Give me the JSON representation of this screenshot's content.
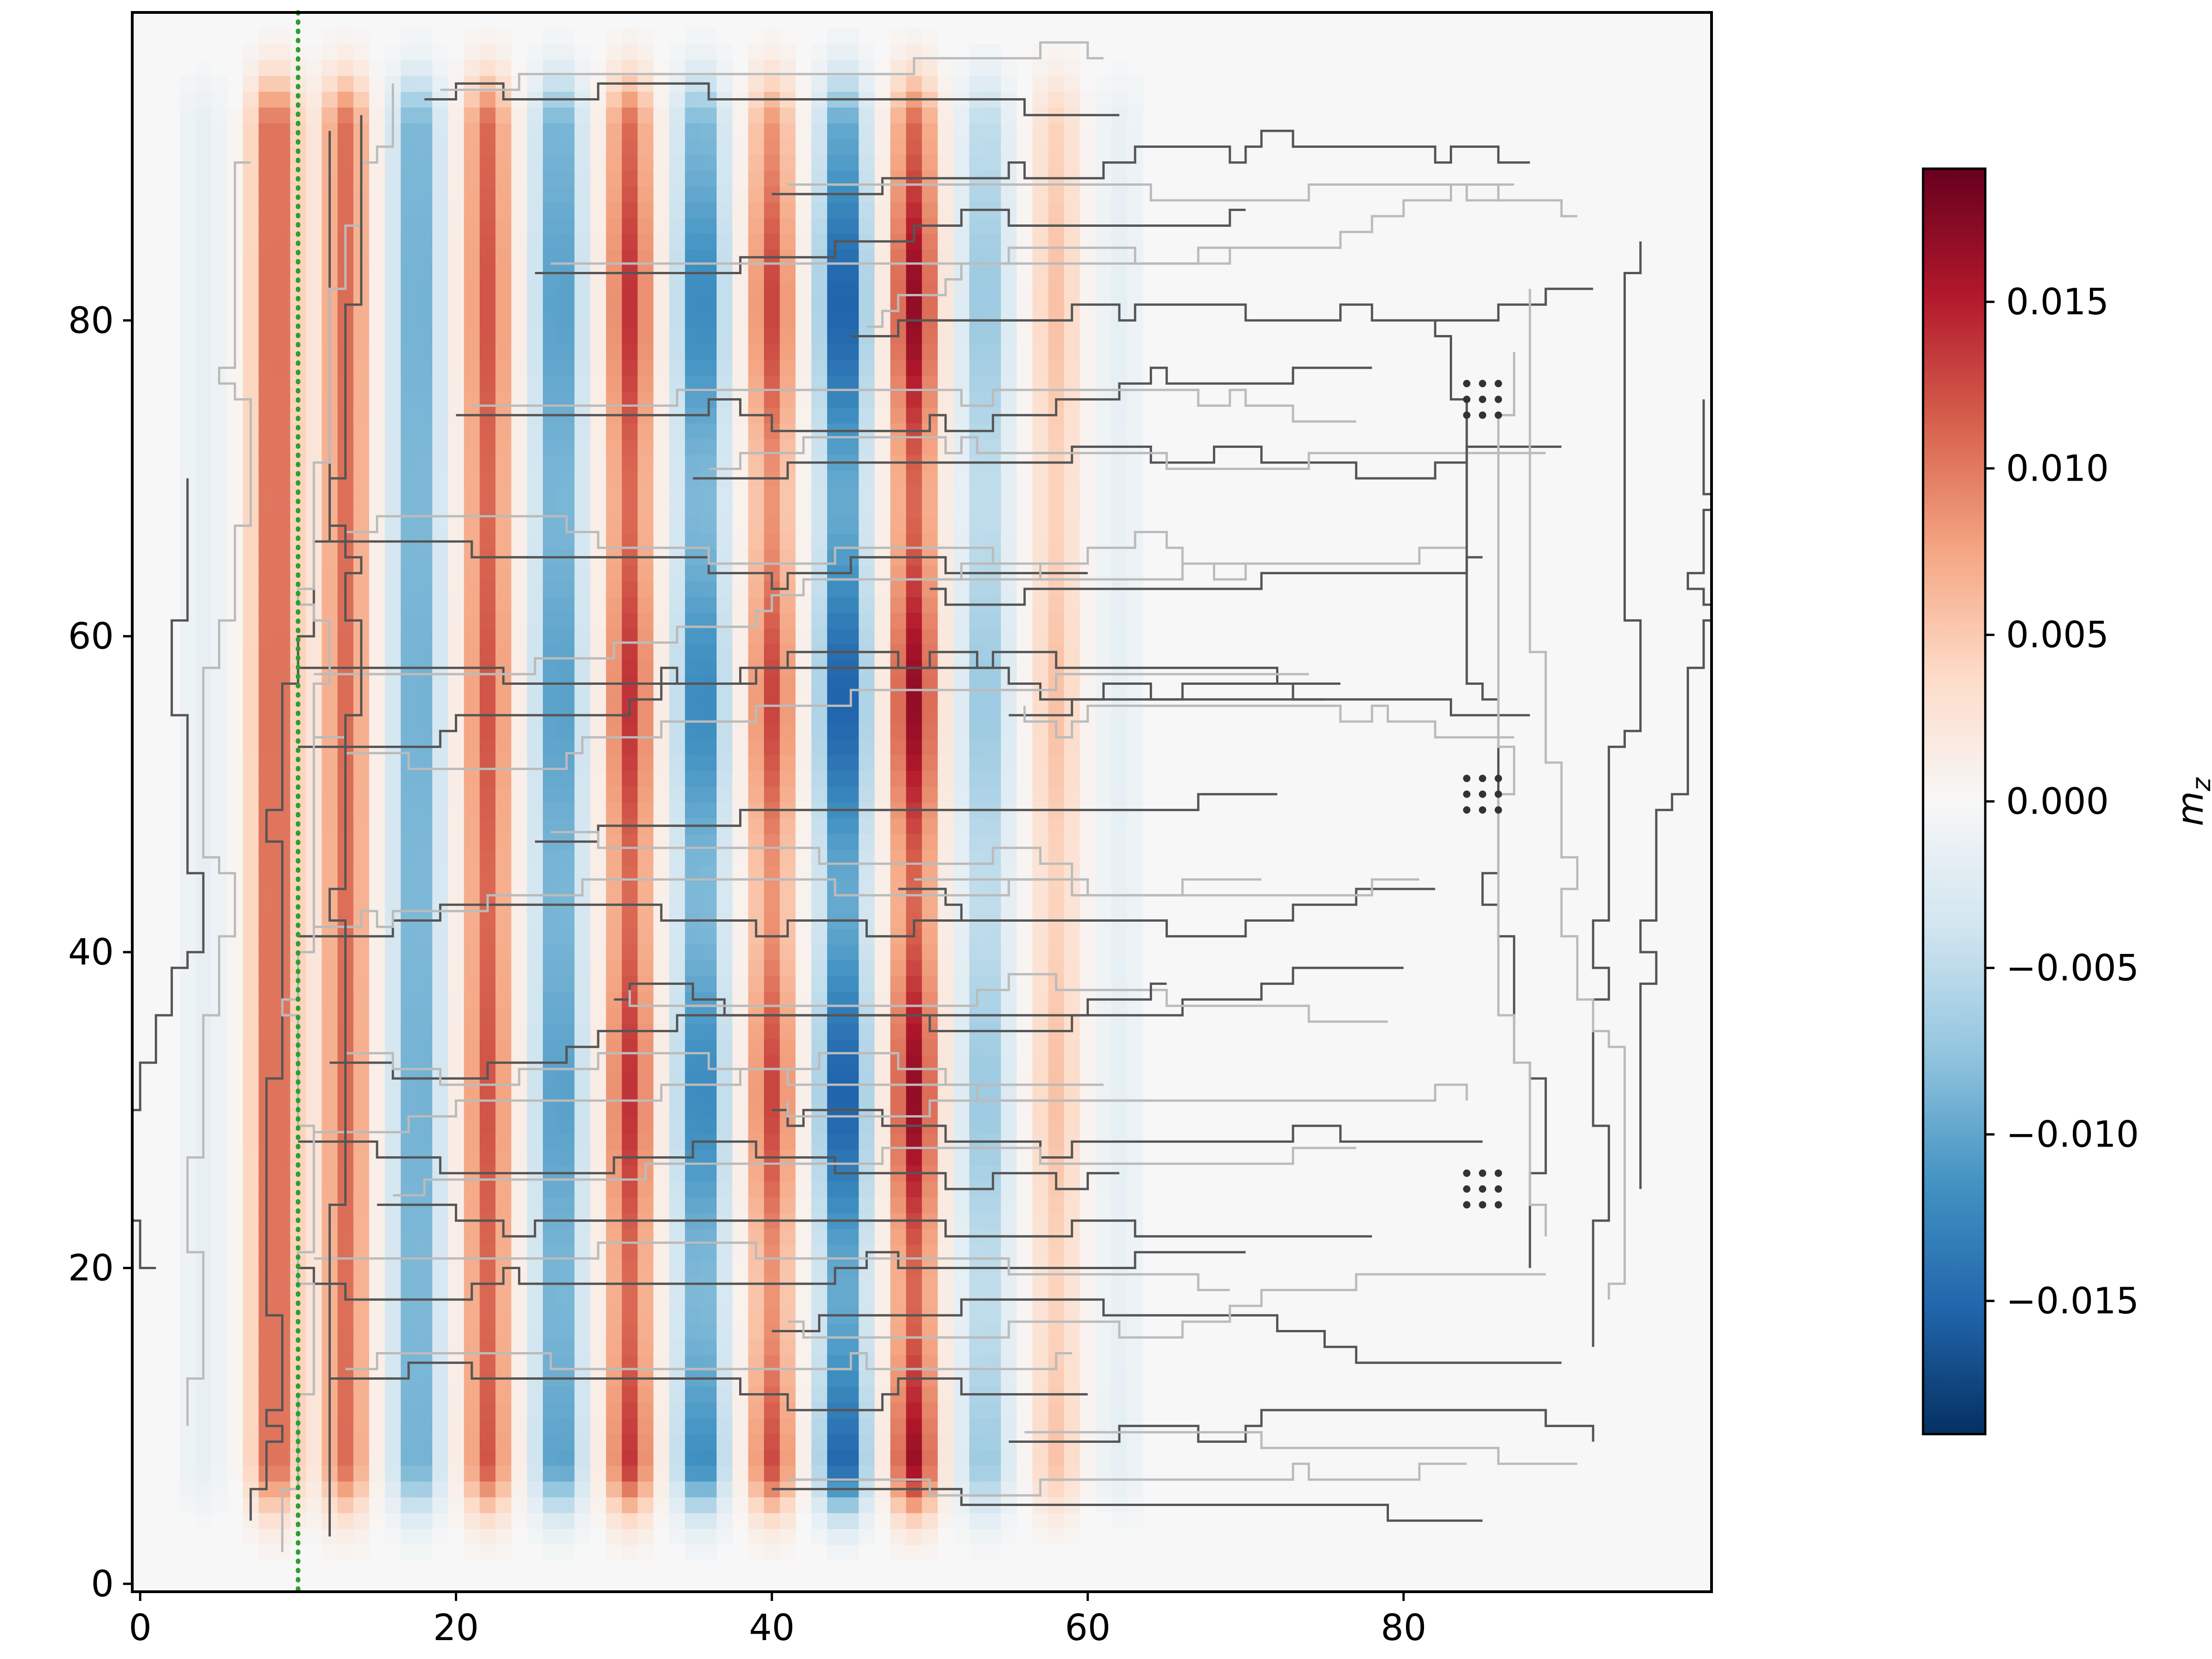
{
  "chart_data": {
    "type": "heatmap",
    "title": "",
    "xlabel": "",
    "ylabel": "",
    "xlim": [
      -0.5,
      99.5
    ],
    "ylim": [
      -0.5,
      99.5
    ],
    "x_ticks": [
      {
        "value": 0,
        "label": "0"
      },
      {
        "value": 20,
        "label": "20"
      },
      {
        "value": 40,
        "label": "40"
      },
      {
        "value": 60,
        "label": "60"
      },
      {
        "value": 80,
        "label": "80"
      }
    ],
    "y_ticks": [
      {
        "value": 0,
        "label": "0"
      },
      {
        "value": 20,
        "label": "20"
      },
      {
        "value": 40,
        "label": "40"
      },
      {
        "value": 60,
        "label": "60"
      },
      {
        "value": 80,
        "label": "80"
      }
    ],
    "colormap": "RdBu_r",
    "colors": {
      "neg_max": "#053061",
      "neg_mid": "#4393c3",
      "neutral": "#f7f7f7",
      "pos_mid": "#f4a582",
      "pos_max": "#67001f"
    },
    "value_range": [
      -0.019,
      0.019
    ],
    "field": {
      "description_of_pattern": "vertical stripes",
      "stripes": [
        {
          "x_center": 4,
          "amplitude": -0.002
        },
        {
          "x_center": 8.5,
          "amplitude": 0.014
        },
        {
          "x_center": 13,
          "amplitude": 0.013
        },
        {
          "x_center": 17.5,
          "amplitude": -0.012
        },
        {
          "x_center": 22,
          "amplitude": 0.014
        },
        {
          "x_center": 26.5,
          "amplitude": -0.013
        },
        {
          "x_center": 31,
          "amplitude": 0.015
        },
        {
          "x_center": 35.5,
          "amplitude": -0.014
        },
        {
          "x_center": 40,
          "amplitude": 0.013
        },
        {
          "x_center": 44.5,
          "amplitude": -0.017
        },
        {
          "x_center": 49,
          "amplitude": 0.017
        },
        {
          "x_center": 53.5,
          "amplitude": -0.008
        },
        {
          "x_center": 58,
          "amplitude": 0.006
        },
        {
          "x_center": 62,
          "amplitude": -0.002
        }
      ],
      "y_extent": [
        8,
        92
      ]
    },
    "vertical_line": {
      "x": 10,
      "color": "#2ca02c",
      "style": "dotted"
    },
    "dot_clusters": [
      {
        "x": [
          84,
          85,
          86
        ],
        "y": [
          74,
          75,
          76
        ]
      },
      {
        "x": [
          84,
          85,
          86
        ],
        "y": [
          49,
          50,
          51
        ]
      },
      {
        "x": [
          84,
          85,
          86
        ],
        "y": [
          24,
          25,
          26
        ]
      }
    ],
    "contour_levels": [
      {
        "name": "dark",
        "color": "#555555"
      },
      {
        "name": "light",
        "color": "#bbbbbb"
      }
    ],
    "colorbar": {
      "label": "m_z",
      "label_main": "m",
      "label_sub": "z",
      "ticks": [
        {
          "value": 0.015,
          "label": "0.015"
        },
        {
          "value": 0.01,
          "label": "0.010"
        },
        {
          "value": 0.005,
          "label": "0.005"
        },
        {
          "value": 0.0,
          "label": "0.000"
        },
        {
          "value": -0.005,
          "label": "−0.005"
        },
        {
          "value": -0.01,
          "label": "−0.010"
        },
        {
          "value": -0.015,
          "label": "−0.015"
        }
      ]
    }
  }
}
